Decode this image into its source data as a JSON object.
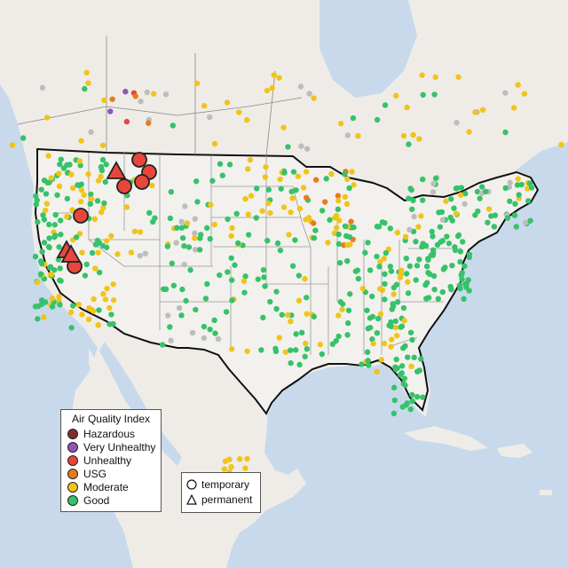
{
  "legend": {
    "title": "Air Quality Index",
    "categories": [
      {
        "label": "Hazardous",
        "color": "#7e2e2e"
      },
      {
        "label": "Very Unhealthy",
        "color": "#8f55b8"
      },
      {
        "label": "Unhealthy",
        "color": "#e8463c"
      },
      {
        "label": "USG",
        "color": "#e87a1f"
      },
      {
        "label": "Moderate",
        "color": "#f0c419"
      },
      {
        "label": "Good",
        "color": "#36c26a"
      }
    ],
    "no_data_color": "#bdbdbd"
  },
  "monitor_type_legend": {
    "temporary": "temporary",
    "permanent": "permanent"
  },
  "colors": {
    "ocean": "#c8d9ec",
    "land": "#efece7",
    "us_land": "#f3f1ee",
    "border": "#111111",
    "state_lines": "#9a9a9a"
  }
}
